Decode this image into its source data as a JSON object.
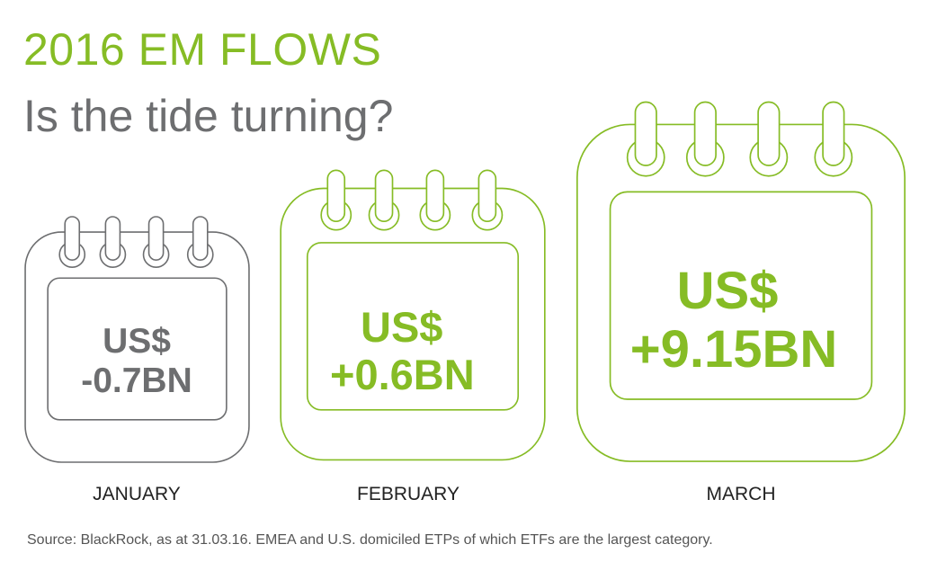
{
  "title": "2016 EM FLOWS",
  "subtitle": "Is the tide turning?",
  "colors": {
    "green": "#86bc25",
    "gray": "#6d6e70"
  },
  "months": [
    {
      "label": "JANUARY",
      "currency": "US$",
      "value": "-0.7BN",
      "color": "#6d6e70",
      "icon": "calendar-icon"
    },
    {
      "label": "FEBRUARY",
      "currency": "US$",
      "value": "+0.6BN",
      "color": "#86bc25",
      "icon": "calendar-icon"
    },
    {
      "label": "MARCH",
      "currency": "US$",
      "value": "+9.15BN",
      "color": "#86bc25",
      "icon": "calendar-icon"
    }
  ],
  "source": "Source: BlackRock, as at 31.03.16. EMEA and U.S. domiciled ETPs of which ETFs are the largest category."
}
